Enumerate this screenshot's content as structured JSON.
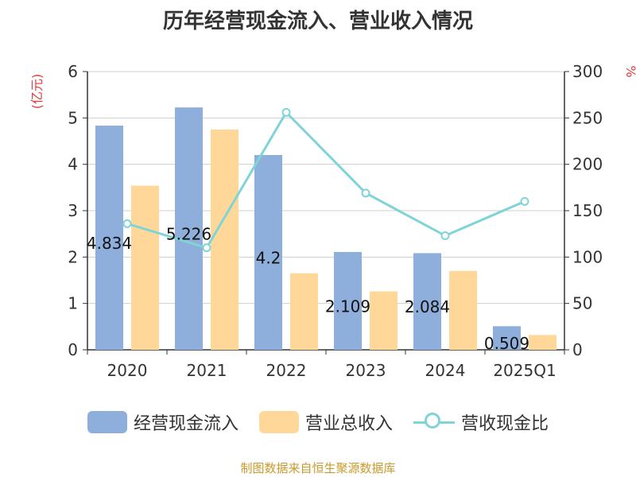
{
  "title": "历年经营现金流入、营业收入情况",
  "source": "制图数据来自恒生聚源数据库",
  "chart_data": {
    "type": "bar",
    "categories": [
      "2020",
      "2021",
      "2022",
      "2023",
      "2024",
      "2025Q1"
    ],
    "left_unit": "(亿元)",
    "right_unit": "%",
    "ylim_left": [
      0,
      6
    ],
    "yticks_left": [
      "0",
      "1",
      "2",
      "3",
      "4",
      "5",
      "6"
    ],
    "ylim_right": [
      0,
      300
    ],
    "yticks_right": [
      "0",
      "50",
      "100",
      "150",
      "200",
      "250",
      "300"
    ],
    "grid": true,
    "legend_position": "bottom",
    "series": [
      {
        "name": "经营现金流入",
        "type": "bar",
        "axis": "left",
        "color": "#8eaedc",
        "values": [
          4.834,
          5.226,
          4.2,
          2.109,
          2.084,
          0.509
        ],
        "labels": [
          "4.834",
          "5.226",
          "4.2",
          "2.109",
          "2.084",
          "0.509"
        ]
      },
      {
        "name": "营业总收入",
        "type": "bar",
        "axis": "left",
        "color": "#ffd899",
        "values": [
          3.54,
          4.75,
          1.65,
          1.26,
          1.7,
          0.32
        ]
      },
      {
        "name": "营收现金比",
        "type": "line",
        "axis": "right",
        "color": "#80d4d8",
        "values": [
          136,
          110,
          256,
          169,
          123,
          160
        ]
      }
    ]
  }
}
